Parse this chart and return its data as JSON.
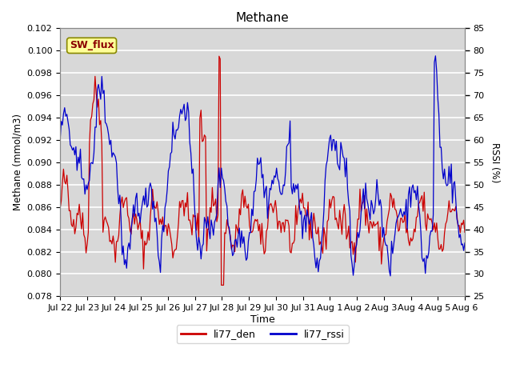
{
  "title": "Methane",
  "xlabel": "Time",
  "ylabel_left": "Methane (mmol/m3)",
  "ylabel_right": "RSSI (%)",
  "ylim_left": [
    0.078,
    0.102
  ],
  "ylim_right": [
    25,
    85
  ],
  "yticks_left": [
    0.078,
    0.08,
    0.082,
    0.084,
    0.086,
    0.088,
    0.09,
    0.092,
    0.094,
    0.096,
    0.098,
    0.1,
    0.102
  ],
  "yticks_right": [
    25,
    30,
    35,
    40,
    45,
    50,
    55,
    60,
    65,
    70,
    75,
    80,
    85
  ],
  "color_den": "#cc0000",
  "color_rssi": "#0000cc",
  "fig_bg": "#ffffff",
  "axes_bg": "#d8d8d8",
  "grid_color": "#ffffff",
  "annotation_text": "SW_flux",
  "annotation_bg": "#ffff99",
  "annotation_border": "#888800",
  "legend_den": "li77_den",
  "legend_rssi": "li77_rssi",
  "xtick_labels": [
    "Jul 22",
    "Jul 23",
    "Jul 24",
    "Jul 25",
    "Jul 26",
    "Jul 27",
    "Jul 28",
    "Jul 29",
    "Jul 30",
    "Jul 31",
    "Aug 1",
    "Aug 2",
    "Aug 3",
    "Aug 4",
    "Aug 5",
    "Aug 6"
  ]
}
